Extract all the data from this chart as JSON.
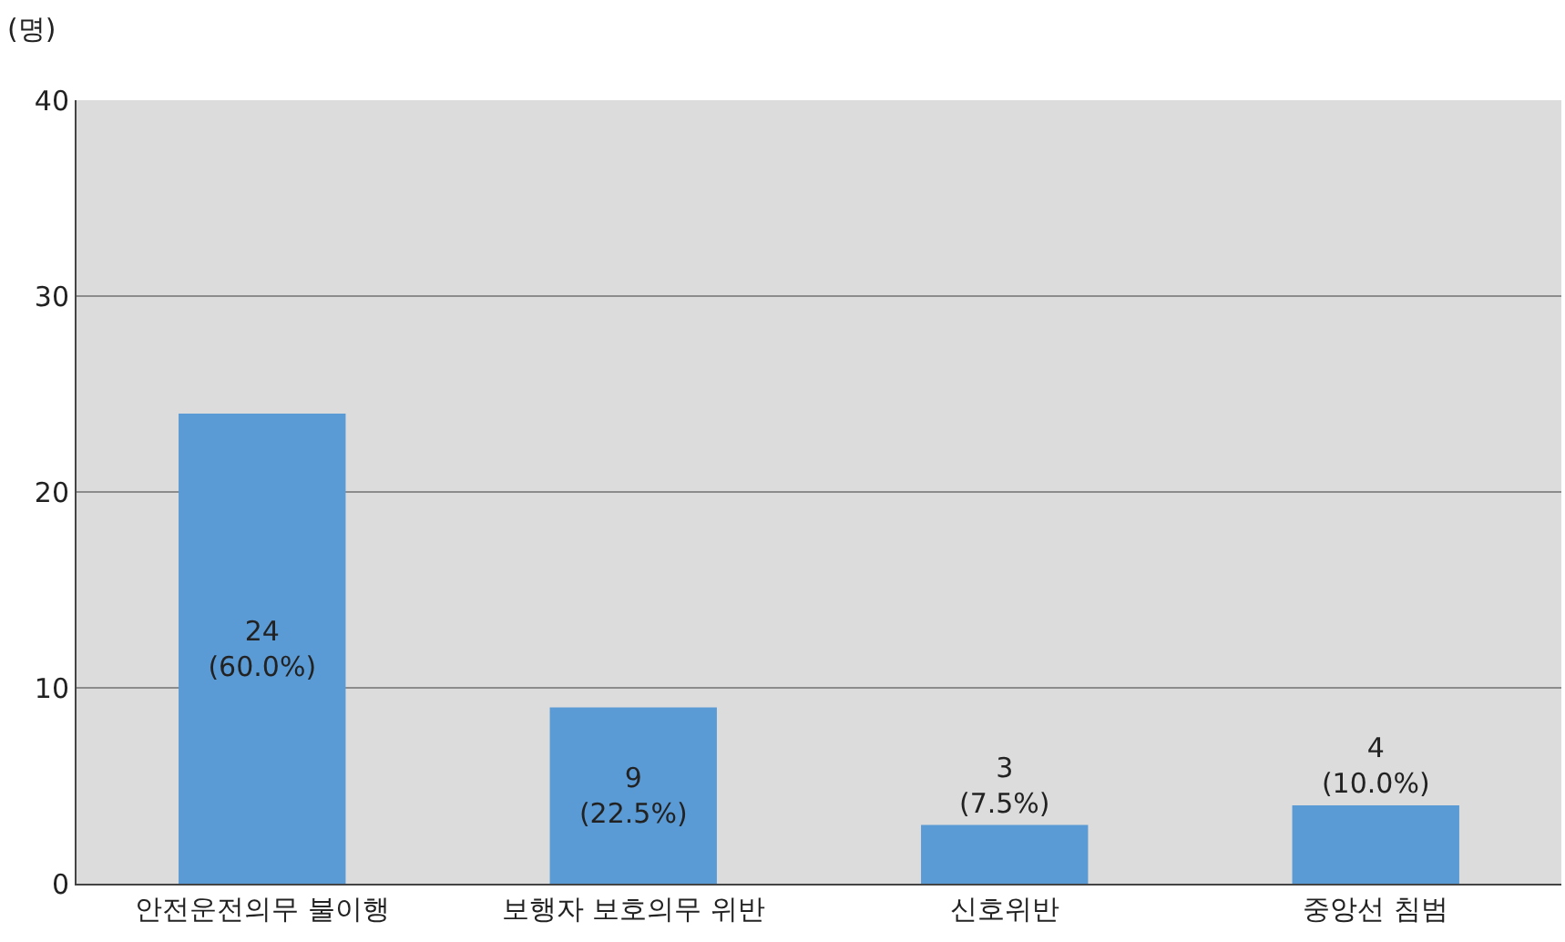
{
  "chart_data": {
    "type": "bar",
    "ylabel": "(명)",
    "categories": [
      "안전운전의무 불이행",
      "보행자 보호의무 위반",
      "신호위반",
      "중앙선 침범"
    ],
    "values": [
      24,
      9,
      3,
      4
    ],
    "color": "#5b9bd5",
    "value_labels": [
      "24\n(60.0%)",
      "9\n(22.5%)",
      "3\n(7.5%)",
      "4\n(10.0%)"
    ],
    "ylim": [
      0,
      40
    ],
    "yticks": [
      0,
      10,
      20,
      30,
      40
    ],
    "grid": "y",
    "legend": false
  }
}
